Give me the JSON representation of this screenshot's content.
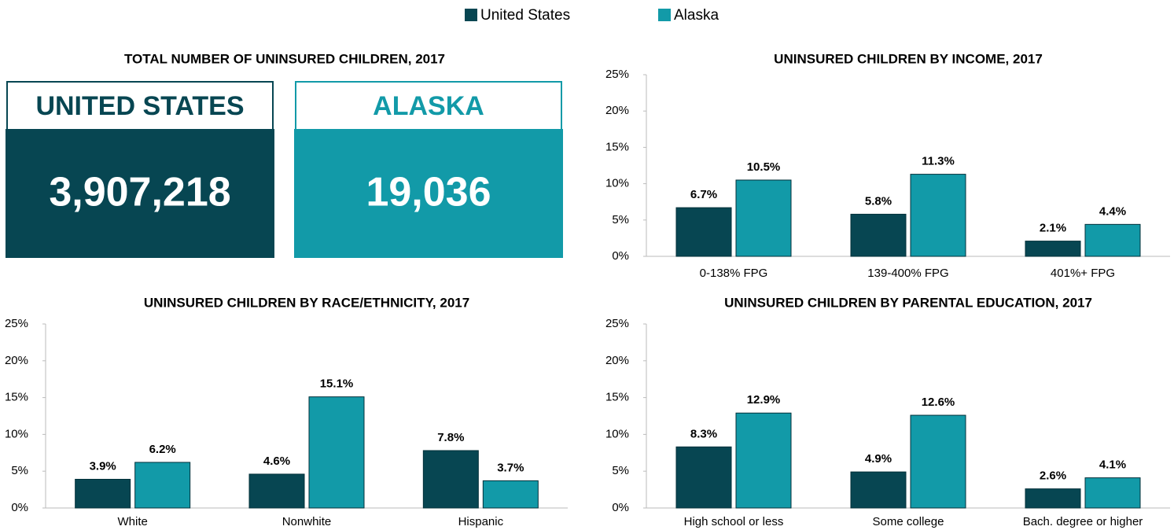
{
  "totals": {
    "title": "TOTAL NUMBER OF UNINSURED CHILDREN, 2017",
    "items": [
      {
        "label": "UNITED STATES",
        "value": {
          "value": 3907218,
          "label": "3,907,218"
        },
        "color": "#074652"
      },
      {
        "label": "ALASKA",
        "value": {
          "value": 19036,
          "label": "19,036"
        },
        "color": "#129aa8"
      }
    ]
  },
  "chart_data": [
    {
      "type": "bar",
      "title": "UNINSURED CHILDREN BY INCOME, 2017",
      "categories": [
        "0-138% FPG",
        "139-400% FPG",
        "401%+ FPG"
      ],
      "series": [
        {
          "name": "United States",
          "color": "#074652",
          "values": [
            6.7,
            5.8,
            2.1
          ],
          "value_labels": [
            "6.7%",
            "5.8%",
            "2.1%"
          ]
        },
        {
          "name": "Alaska",
          "color": "#129aa8",
          "values": [
            10.5,
            11.3,
            4.4
          ],
          "value_labels": [
            "10.5%",
            "11.3%",
            "4.4%"
          ]
        }
      ],
      "ylim": [
        0,
        25
      ],
      "yticks": [
        {
          "value": 0,
          "label": "0%"
        },
        {
          "value": 5,
          "label": "5%"
        },
        {
          "value": 10,
          "label": "10%"
        },
        {
          "value": 15,
          "label": "15%"
        },
        {
          "value": 20,
          "label": "20%"
        },
        {
          "value": 25,
          "label": "25%"
        }
      ]
    },
    {
      "type": "bar",
      "title": "UNINSURED CHILDREN BY RACE/ETHNICITY, 2017",
      "categories": [
        "White",
        "Nonwhite",
        "Hispanic"
      ],
      "series": [
        {
          "name": "United States",
          "color": "#074652",
          "values": [
            3.9,
            4.6,
            7.8
          ],
          "value_labels": [
            "3.9%",
            "4.6%",
            "7.8%"
          ]
        },
        {
          "name": "Alaska",
          "color": "#129aa8",
          "values": [
            6.2,
            15.1,
            3.7
          ],
          "value_labels": [
            "6.2%",
            "15.1%",
            "3.7%"
          ]
        }
      ],
      "ylim": [
        0,
        25
      ],
      "yticks": [
        {
          "value": 0,
          "label": "0%"
        },
        {
          "value": 5,
          "label": "5%"
        },
        {
          "value": 10,
          "label": "10%"
        },
        {
          "value": 15,
          "label": "15%"
        },
        {
          "value": 20,
          "label": "20%"
        },
        {
          "value": 25,
          "label": "25%"
        }
      ]
    },
    {
      "type": "bar",
      "title": "UNINSURED CHILDREN BY PARENTAL EDUCATION, 2017",
      "categories": [
        "High school or less",
        "Some college",
        "Bach. degree or higher"
      ],
      "series": [
        {
          "name": "United States",
          "color": "#074652",
          "values": [
            8.3,
            4.9,
            2.6
          ],
          "value_labels": [
            "8.3%",
            "4.9%",
            "2.6%"
          ]
        },
        {
          "name": "Alaska",
          "color": "#129aa8",
          "values": [
            12.9,
            12.6,
            4.1
          ],
          "value_labels": [
            "12.9%",
            "12.6%",
            "4.1%"
          ]
        }
      ],
      "ylim": [
        0,
        25
      ],
      "yticks": [
        {
          "value": 0,
          "label": "0%"
        },
        {
          "value": 5,
          "label": "5%"
        },
        {
          "value": 10,
          "label": "10%"
        },
        {
          "value": 15,
          "label": "15%"
        },
        {
          "value": 20,
          "label": "20%"
        },
        {
          "value": 25,
          "label": "25%"
        }
      ]
    }
  ]
}
